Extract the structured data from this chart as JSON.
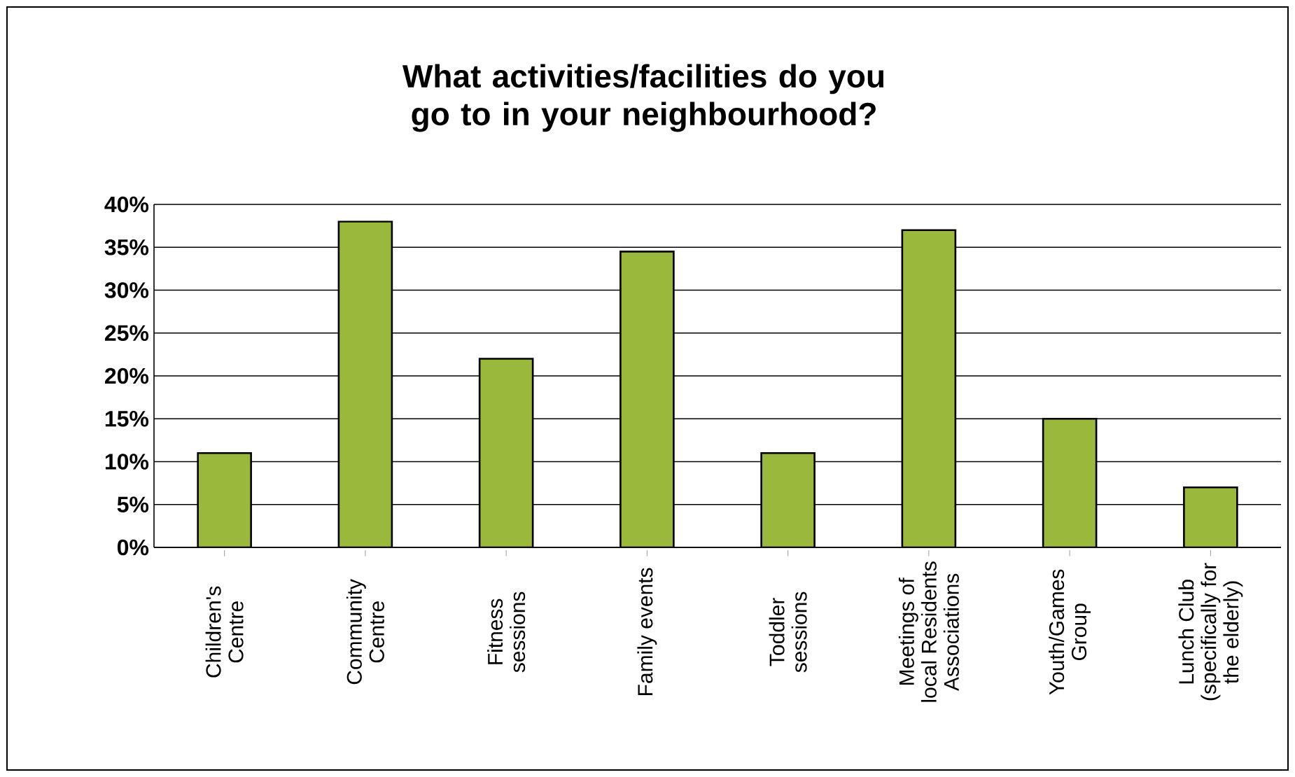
{
  "chart_data": {
    "type": "bar",
    "title": "What activities/facilities do you go to in your neighbourhood?",
    "categories": [
      "Children's Centre",
      "Community Centre",
      "Fitness sessions",
      "Family events",
      "Toddler sessions",
      "Meetings of local Residents Associations",
      "Youth/Games Group",
      "Lunch Club (specifically for the elderly)"
    ],
    "values": [
      11,
      38,
      22,
      34.5,
      11,
      37,
      15,
      7
    ],
    "color": "#9ab83c",
    "ylim": [
      0,
      40
    ],
    "yticks": [
      {
        "value": 0,
        "label": "0%"
      },
      {
        "value": 5,
        "label": "5%"
      },
      {
        "value": 10,
        "label": "10%"
      },
      {
        "value": 15,
        "label": "15%"
      },
      {
        "value": 20,
        "label": "20%"
      },
      {
        "value": 25,
        "label": "25%"
      },
      {
        "value": 30,
        "label": "30%"
      },
      {
        "value": 35,
        "label": "35%"
      },
      {
        "value": 40,
        "label": "40%"
      }
    ],
    "grid": "y"
  }
}
